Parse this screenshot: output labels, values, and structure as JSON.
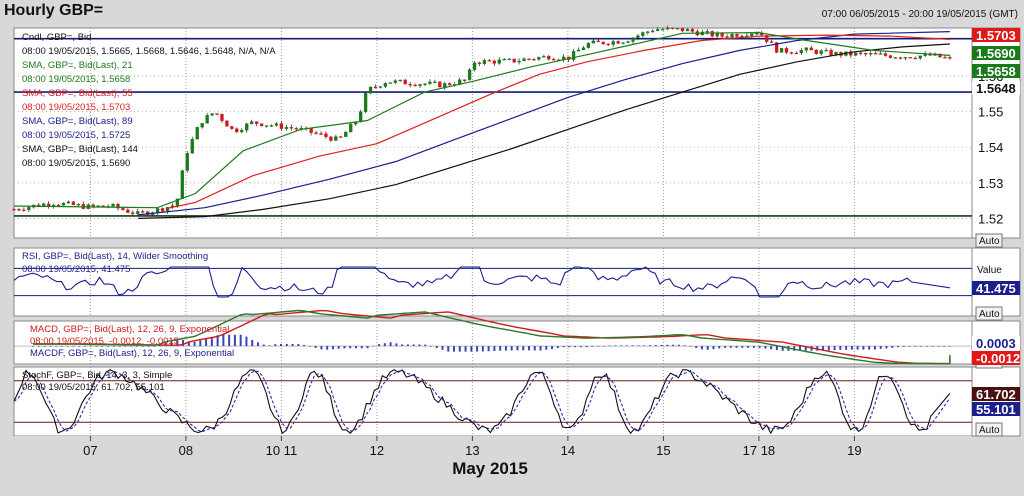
{
  "header": {
    "title": "Hourly GBP=",
    "date_range": "07:00 06/05/2015 - 20:00 19/05/2015 (GMT)"
  },
  "colors": {
    "sma21": "#1e7a1e",
    "sma55": "#e0201a",
    "sma89": "#1a1f8c",
    "sma144": "#111111",
    "candle_up": "#1a7a1a",
    "candle_down": "#d01818",
    "hline": "#141b7a",
    "macd_line": "#2a7a2a",
    "macd_signal": "#d21a1a",
    "stoch_k": "#111111",
    "stoch_d": "#2a2fb0",
    "label_red": "#e01818",
    "label_green": "#1a7a1a",
    "label_blue": "#1a1f8c"
  },
  "price_panel": {
    "legend": [
      {
        "text": "Cndl, GBP=, Bid"
      },
      {
        "text": "08:00 19/05/2015, 1.5665, 1.5668, 1.5646, 1.5648, N/A, N/A"
      },
      {
        "text": "SMA, GBP=, Bid(Last), 21"
      },
      {
        "text": "08:00 19/05/2015, 1.5658"
      },
      {
        "text": "SMA, GBP=, Bid(Last), 55"
      },
      {
        "text": "08:00 19/05/2015, 1.5703"
      },
      {
        "text": "SMA, GBP=, Bid(Last), 89"
      },
      {
        "text": "08:00 19/05/2015, 1.5725"
      },
      {
        "text": "SMA, GBP=, Bid(Last), 144"
      },
      {
        "text": "08:00 19/05/2015, 1.5690"
      }
    ],
    "axis_ticks": [
      "1.56",
      "1.55",
      "1.54",
      "1.53",
      "1.52"
    ],
    "value_labels": [
      {
        "text": "1.5703"
      },
      {
        "text": "1.5690"
      },
      {
        "text": "1.5658"
      },
      {
        "text": "1.5648"
      }
    ],
    "hlines": [
      1.5705,
      1.5555,
      1.5207
    ],
    "auto_label": "Auto"
  },
  "rsi_panel": {
    "legend": [
      "RSI, GBP=, Bid(Last), 14, Wilder Smoothing",
      "08:00 19/05/2015, 41.475"
    ],
    "value_header": "Value",
    "value_label": "41.475",
    "auto_label": "Auto"
  },
  "macd_panel": {
    "legend": [
      "MACD, GBP=, Bid(Last), 12, 26, 9, Exponential",
      "08:00 19/05/2015, -0.0012, -0.0015",
      "MACDF, GBP=, Bid(Last), 12, 26, 9, Exponential"
    ],
    "value_labels": [
      "0.0003",
      "-0.0012"
    ],
    "auto_label": "Auto"
  },
  "stoch_panel": {
    "legend": [
      "StochF, GBP=, Bid, 14, 3, 3, Simple",
      "08:00 19/05/2015, 61.702, 55.101"
    ],
    "axis_partial": "61.702",
    "value_labels": [
      "61.702",
      "55.101"
    ],
    "auto_label": "Auto"
  },
  "x_axis": {
    "ticks": [
      {
        "label": "07",
        "day": 0.8
      },
      {
        "label": "08",
        "day": 1.8
      },
      {
        "label": "10 11",
        "day": 2.8
      },
      {
        "label": "12",
        "day": 3.8
      },
      {
        "label": "13",
        "day": 4.8
      },
      {
        "label": "14",
        "day": 5.8
      },
      {
        "label": "15",
        "day": 6.8
      },
      {
        "label": "17 18",
        "day": 7.8
      },
      {
        "label": "19",
        "day": 8.8
      }
    ],
    "month_label": "May 2015"
  },
  "chart_data": {
    "type": "line",
    "title": "Hourly GBP=",
    "x_unit": "trading day index (0 = 06/05/2015 07:00)",
    "close_path": [
      [
        0.0,
        1.5226
      ],
      [
        0.4,
        1.5244
      ],
      [
        0.8,
        1.5232
      ],
      [
        1.0,
        1.5236
      ],
      [
        1.3,
        1.5212
      ],
      [
        1.5,
        1.5224
      ],
      [
        1.7,
        1.524
      ],
      [
        1.8,
        1.538
      ],
      [
        1.95,
        1.547
      ],
      [
        2.1,
        1.55
      ],
      [
        2.3,
        1.5445
      ],
      [
        2.5,
        1.547
      ],
      [
        2.8,
        1.5458
      ],
      [
        3.0,
        1.545
      ],
      [
        3.2,
        1.5435
      ],
      [
        3.4,
        1.542
      ],
      [
        3.6,
        1.548
      ],
      [
        3.7,
        1.556
      ],
      [
        3.9,
        1.5585
      ],
      [
        4.2,
        1.558
      ],
      [
        4.5,
        1.5575
      ],
      [
        4.75,
        1.559
      ],
      [
        4.8,
        1.564
      ],
      [
        5.2,
        1.5642
      ],
      [
        5.6,
        1.5655
      ],
      [
        5.8,
        1.565
      ],
      [
        6.0,
        1.569
      ],
      [
        6.4,
        1.57
      ],
      [
        6.7,
        1.5732
      ],
      [
        7.0,
        1.573
      ],
      [
        7.4,
        1.5712
      ],
      [
        7.8,
        1.5725
      ],
      [
        8.0,
        1.567
      ],
      [
        8.3,
        1.5672
      ],
      [
        8.6,
        1.5662
      ],
      [
        9.0,
        1.566
      ],
      [
        9.3,
        1.5655
      ],
      [
        9.6,
        1.5658
      ],
      [
        9.8,
        1.5648
      ]
    ],
    "sma21": [
      [
        0.0,
        1.5235
      ],
      [
        1.5,
        1.523
      ],
      [
        1.9,
        1.527
      ],
      [
        2.4,
        1.539
      ],
      [
        3.0,
        1.545
      ],
      [
        3.7,
        1.5475
      ],
      [
        4.3,
        1.5555
      ],
      [
        4.8,
        1.5585
      ],
      [
        5.4,
        1.5625
      ],
      [
        6.0,
        1.566
      ],
      [
        6.5,
        1.569
      ],
      [
        7.0,
        1.572
      ],
      [
        7.8,
        1.5722
      ],
      [
        8.3,
        1.57
      ],
      [
        9.0,
        1.5672
      ],
      [
        9.8,
        1.5658
      ]
    ],
    "sma55": [
      [
        1.6,
        1.5228
      ],
      [
        1.9,
        1.5245
      ],
      [
        2.5,
        1.532
      ],
      [
        3.2,
        1.5375
      ],
      [
        3.8,
        1.541
      ],
      [
        4.4,
        1.548
      ],
      [
        5.0,
        1.555
      ],
      [
        5.5,
        1.5605
      ],
      [
        6.0,
        1.564
      ],
      [
        6.6,
        1.5672
      ],
      [
        7.2,
        1.57
      ],
      [
        7.8,
        1.5712
      ],
      [
        8.5,
        1.5715
      ],
      [
        9.2,
        1.5712
      ],
      [
        9.8,
        1.5703
      ]
    ],
    "sma89": [
      [
        1.3,
        1.521
      ],
      [
        2.0,
        1.523
      ],
      [
        2.6,
        1.5265
      ],
      [
        3.3,
        1.531
      ],
      [
        4.0,
        1.536
      ],
      [
        4.6,
        1.542
      ],
      [
        5.2,
        1.548
      ],
      [
        5.8,
        1.554
      ],
      [
        6.4,
        1.559
      ],
      [
        7.0,
        1.5635
      ],
      [
        7.6,
        1.5672
      ],
      [
        8.2,
        1.57
      ],
      [
        8.8,
        1.5718
      ],
      [
        9.8,
        1.5725
      ]
    ],
    "sma144": [
      [
        1.3,
        1.52
      ],
      [
        2.0,
        1.5205
      ],
      [
        2.6,
        1.5225
      ],
      [
        3.3,
        1.5255
      ],
      [
        4.0,
        1.5295
      ],
      [
        4.6,
        1.5345
      ],
      [
        5.2,
        1.5395
      ],
      [
        5.8,
        1.545
      ],
      [
        6.4,
        1.5505
      ],
      [
        7.0,
        1.5555
      ],
      [
        7.6,
        1.5605
      ],
      [
        8.2,
        1.564
      ],
      [
        8.8,
        1.5668
      ],
      [
        9.3,
        1.5682
      ],
      [
        9.8,
        1.569
      ]
    ],
    "last_candle": {
      "time": "08:00 19/05/2015",
      "open": 1.5665,
      "high": 1.5668,
      "low": 1.5646,
      "close": 1.5648
    },
    "horizontal_levels": [
      1.5705,
      1.5555,
      1.5207
    ],
    "price_ylim": [
      1.5145,
      1.5735
    ],
    "rsi": {
      "last": 41.475,
      "levels": [
        70,
        30
      ],
      "ylim": [
        0,
        100
      ]
    },
    "macd": {
      "last_macd": -0.0012,
      "last_signal": -0.0015,
      "histogram_last": 0.0003
    },
    "stoch": {
      "k_last": 61.702,
      "d_last": 55.101,
      "levels": [
        80,
        20
      ],
      "ylim": [
        0,
        100
      ]
    }
  }
}
